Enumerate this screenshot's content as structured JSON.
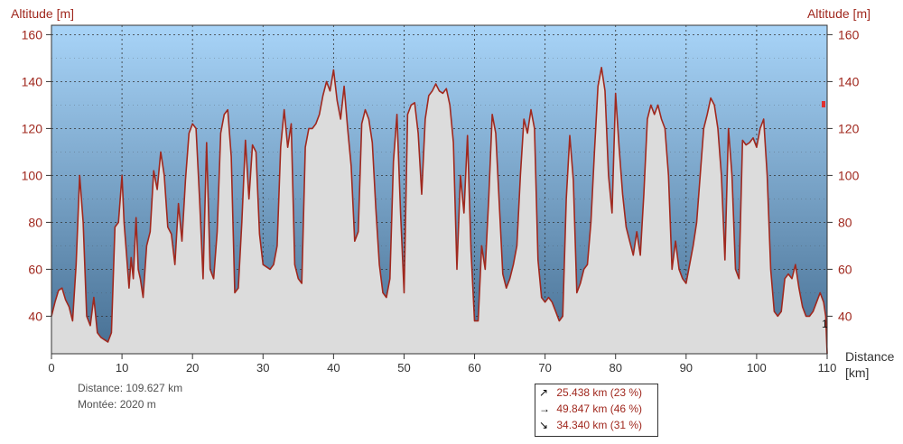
{
  "chart_data": {
    "type": "area",
    "ylabel": "Altitude [m]",
    "ylabel_right": "Altitude [m]",
    "xlabel": "Distance",
    "xunit": "[km]",
    "xlim": [
      0,
      110
    ],
    "ylim": [
      24,
      164
    ],
    "x_ticks": [
      0,
      10,
      20,
      30,
      40,
      50,
      60,
      70,
      80,
      90,
      100,
      110
    ],
    "y_ticks": [
      40,
      60,
      80,
      100,
      120,
      140,
      160
    ],
    "grid": true,
    "colors": {
      "line": "#a0281e",
      "fill": "#dcdcdc",
      "sky_top": "#a8d4f8",
      "sky_bottom": "#4a7aa0",
      "axis_text": "#a0281e"
    },
    "series": [
      {
        "points": [
          [
            0,
            40
          ],
          [
            0.5,
            46
          ],
          [
            1,
            51
          ],
          [
            1.5,
            52
          ],
          [
            2,
            47
          ],
          [
            2.5,
            44
          ],
          [
            3,
            38
          ],
          [
            3.5,
            62
          ],
          [
            4,
            100
          ],
          [
            4.5,
            80
          ],
          [
            5,
            40
          ],
          [
            5.5,
            36
          ],
          [
            6,
            48
          ],
          [
            6.5,
            33
          ],
          [
            7,
            31
          ],
          [
            7.5,
            30
          ],
          [
            8,
            29
          ],
          [
            8.5,
            33
          ],
          [
            9,
            78
          ],
          [
            9.5,
            80
          ],
          [
            10,
            100
          ],
          [
            10.3,
            80
          ],
          [
            10.6,
            68
          ],
          [
            11,
            52
          ],
          [
            11.3,
            65
          ],
          [
            11.6,
            56
          ],
          [
            12,
            82
          ],
          [
            12.3,
            60
          ],
          [
            12.6,
            56
          ],
          [
            13,
            48
          ],
          [
            13.5,
            70
          ],
          [
            14,
            76
          ],
          [
            14.5,
            102
          ],
          [
            15,
            94
          ],
          [
            15.5,
            110
          ],
          [
            16,
            100
          ],
          [
            16.5,
            78
          ],
          [
            17,
            75
          ],
          [
            17.5,
            62
          ],
          [
            18,
            88
          ],
          [
            18.5,
            72
          ],
          [
            19,
            98
          ],
          [
            19.5,
            118
          ],
          [
            20,
            122
          ],
          [
            20.5,
            120
          ],
          [
            21,
            90
          ],
          [
            21.5,
            56
          ],
          [
            22,
            114
          ],
          [
            22.5,
            60
          ],
          [
            23,
            56
          ],
          [
            23.5,
            76
          ],
          [
            24,
            118
          ],
          [
            24.5,
            126
          ],
          [
            25,
            128
          ],
          [
            25.5,
            108
          ],
          [
            26,
            50
          ],
          [
            26.5,
            52
          ],
          [
            27,
            80
          ],
          [
            27.5,
            115
          ],
          [
            28,
            90
          ],
          [
            28.5,
            113
          ],
          [
            29,
            110
          ],
          [
            29.5,
            75
          ],
          [
            30,
            62
          ],
          [
            30.5,
            61
          ],
          [
            31,
            60
          ],
          [
            31.5,
            62
          ],
          [
            32,
            70
          ],
          [
            32.5,
            112
          ],
          [
            33,
            128
          ],
          [
            33.5,
            112
          ],
          [
            34,
            122
          ],
          [
            34.5,
            62
          ],
          [
            35,
            56
          ],
          [
            35.5,
            54
          ],
          [
            36,
            112
          ],
          [
            36.5,
            120
          ],
          [
            37,
            120
          ],
          [
            37.5,
            122
          ],
          [
            38,
            126
          ],
          [
            38.5,
            134
          ],
          [
            39,
            140
          ],
          [
            39.5,
            136
          ],
          [
            40,
            145
          ],
          [
            40.5,
            132
          ],
          [
            41,
            124
          ],
          [
            41.5,
            138
          ],
          [
            42,
            120
          ],
          [
            42.5,
            104
          ],
          [
            43,
            72
          ],
          [
            43.5,
            76
          ],
          [
            44,
            122
          ],
          [
            44.5,
            128
          ],
          [
            45,
            124
          ],
          [
            45.5,
            114
          ],
          [
            46,
            86
          ],
          [
            46.5,
            62
          ],
          [
            47,
            50
          ],
          [
            47.5,
            48
          ],
          [
            48,
            56
          ],
          [
            48.5,
            106
          ],
          [
            49,
            126
          ],
          [
            49.5,
            84
          ],
          [
            50,
            50
          ],
          [
            50.5,
            126
          ],
          [
            51,
            130
          ],
          [
            51.5,
            131
          ],
          [
            52,
            118
          ],
          [
            52.5,
            92
          ],
          [
            53,
            124
          ],
          [
            53.5,
            134
          ],
          [
            54,
            136
          ],
          [
            54.5,
            139
          ],
          [
            55,
            136
          ],
          [
            55.5,
            135
          ],
          [
            56,
            137
          ],
          [
            56.5,
            130
          ],
          [
            57,
            114
          ],
          [
            57.5,
            60
          ],
          [
            58,
            100
          ],
          [
            58.5,
            84
          ],
          [
            59,
            117
          ],
          [
            59.5,
            68
          ],
          [
            60,
            38
          ],
          [
            60.5,
            38
          ],
          [
            61,
            70
          ],
          [
            61.5,
            60
          ],
          [
            62,
            90
          ],
          [
            62.5,
            126
          ],
          [
            63,
            118
          ],
          [
            63.5,
            88
          ],
          [
            64,
            58
          ],
          [
            64.5,
            52
          ],
          [
            65,
            56
          ],
          [
            65.5,
            62
          ],
          [
            66,
            70
          ],
          [
            66.5,
            100
          ],
          [
            67,
            124
          ],
          [
            67.5,
            118
          ],
          [
            68,
            128
          ],
          [
            68.5,
            120
          ],
          [
            69,
            64
          ],
          [
            69.5,
            48
          ],
          [
            70,
            46
          ],
          [
            70.5,
            48
          ],
          [
            71,
            46
          ],
          [
            71.5,
            42
          ],
          [
            72,
            38
          ],
          [
            72.5,
            40
          ],
          [
            73,
            90
          ],
          [
            73.5,
            117
          ],
          [
            74,
            98
          ],
          [
            74.5,
            50
          ],
          [
            75,
            54
          ],
          [
            75.5,
            60
          ],
          [
            76,
            62
          ],
          [
            76.5,
            80
          ],
          [
            77,
            110
          ],
          [
            77.5,
            138
          ],
          [
            78,
            146
          ],
          [
            78.5,
            136
          ],
          [
            79,
            100
          ],
          [
            79.5,
            84
          ],
          [
            80,
            135
          ],
          [
            80.5,
            112
          ],
          [
            81,
            92
          ],
          [
            81.5,
            78
          ],
          [
            82,
            72
          ],
          [
            82.5,
            66
          ],
          [
            83,
            76
          ],
          [
            83.5,
            66
          ],
          [
            84,
            92
          ],
          [
            84.5,
            124
          ],
          [
            85,
            130
          ],
          [
            85.5,
            126
          ],
          [
            86,
            130
          ],
          [
            86.5,
            124
          ],
          [
            87,
            120
          ],
          [
            87.5,
            100
          ],
          [
            88,
            60
          ],
          [
            88.5,
            72
          ],
          [
            89,
            60
          ],
          [
            89.5,
            56
          ],
          [
            90,
            54
          ],
          [
            90.5,
            62
          ],
          [
            91,
            70
          ],
          [
            91.5,
            80
          ],
          [
            92,
            100
          ],
          [
            92.5,
            120
          ],
          [
            93,
            126
          ],
          [
            93.5,
            133
          ],
          [
            94,
            130
          ],
          [
            94.5,
            120
          ],
          [
            95,
            100
          ],
          [
            95.5,
            64
          ],
          [
            96,
            120
          ],
          [
            96.5,
            100
          ],
          [
            97,
            60
          ],
          [
            97.5,
            56
          ],
          [
            98,
            115
          ],
          [
            98.5,
            113
          ],
          [
            99,
            114
          ],
          [
            99.5,
            116
          ],
          [
            100,
            112
          ],
          [
            100.5,
            120
          ],
          [
            101,
            124
          ],
          [
            101.5,
            100
          ],
          [
            102,
            60
          ],
          [
            102.5,
            42
          ],
          [
            103,
            40
          ],
          [
            103.5,
            42
          ],
          [
            104,
            56
          ],
          [
            104.5,
            58
          ],
          [
            105,
            56
          ],
          [
            105.5,
            62
          ],
          [
            106,
            52
          ],
          [
            106.5,
            44
          ],
          [
            107,
            40
          ],
          [
            107.5,
            40
          ],
          [
            108,
            42
          ],
          [
            108.5,
            46
          ],
          [
            109,
            50
          ],
          [
            109.5,
            46
          ],
          [
            109.8,
            40
          ],
          [
            110,
            24
          ]
        ]
      }
    ]
  },
  "labels": {
    "ylabel_left": "Altitude [m]",
    "ylabel_right": "Altitude [m]",
    "xlabel": "Distance",
    "xunit": "[km]",
    "end_marker": "1"
  },
  "stats": {
    "distance": "Distance: 109.627 km",
    "climb": "Montée: 2020 m"
  },
  "legend": [
    {
      "icon": "arrow-up-right-icon",
      "arrow": "↗",
      "text": "25.438 km  (23 %)"
    },
    {
      "icon": "arrow-right-icon",
      "arrow": "→",
      "text": "49.847 km  (46 %)"
    },
    {
      "icon": "arrow-down-right-icon",
      "arrow": "↘",
      "text": "34.340 km  (31 %)"
    }
  ]
}
